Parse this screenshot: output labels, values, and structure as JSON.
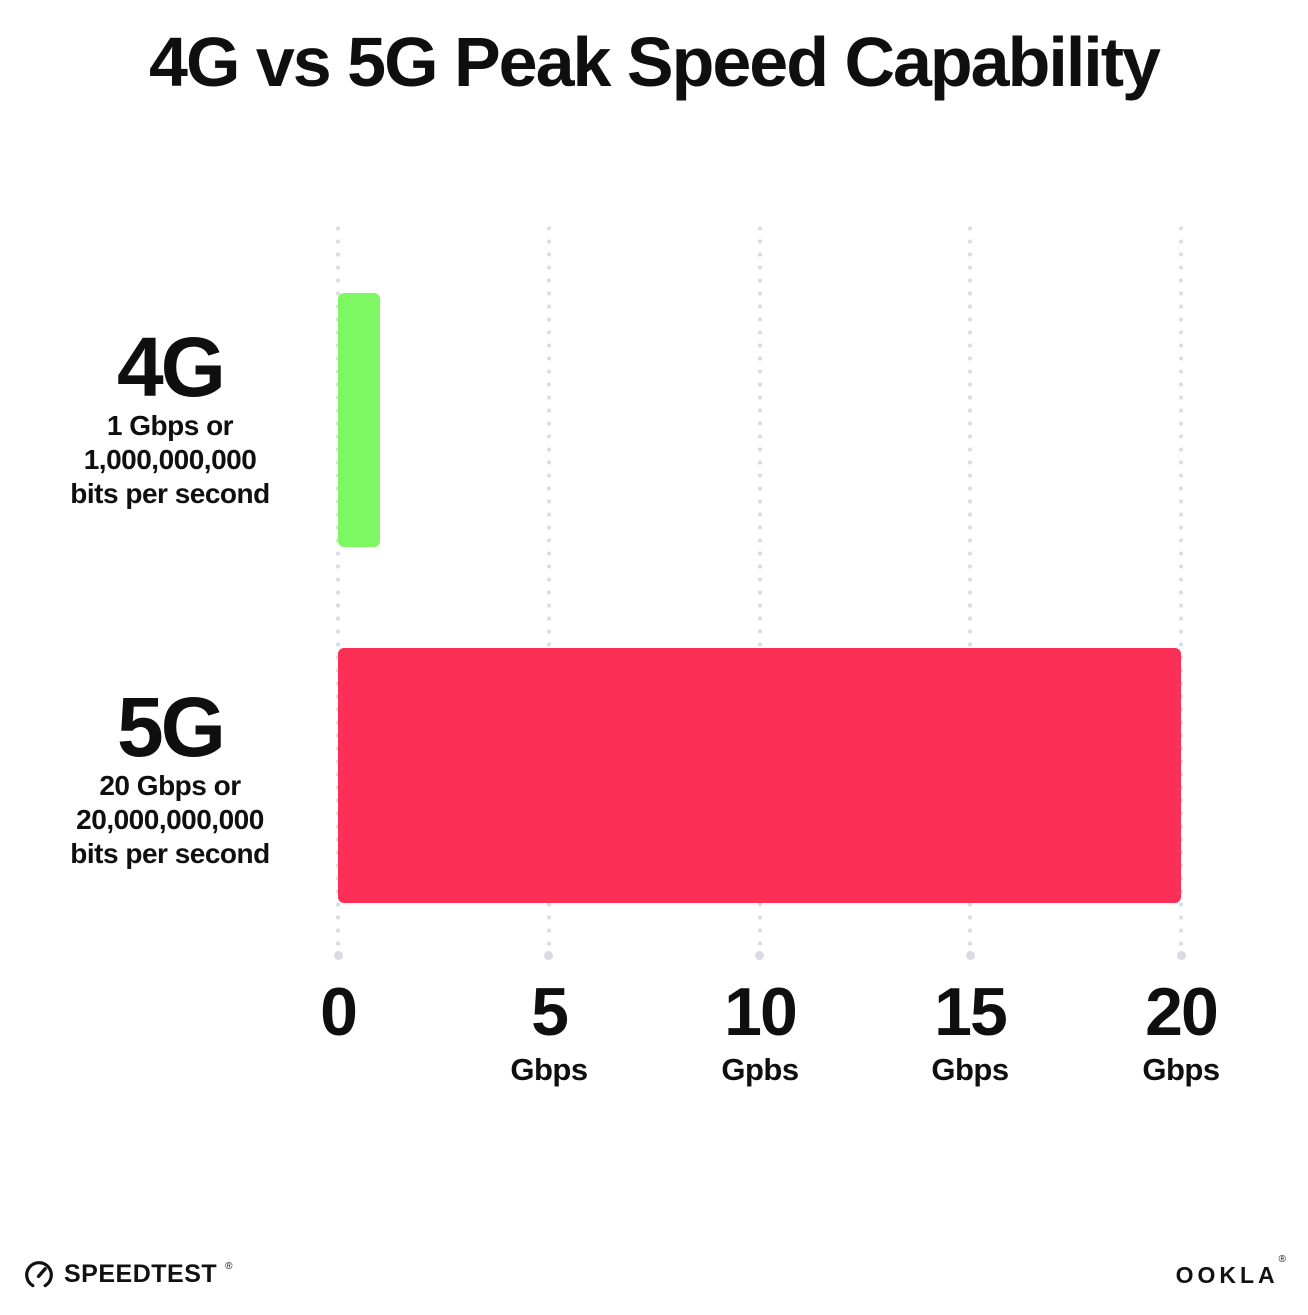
{
  "title": "4G vs 5G Peak Speed Capability",
  "rows": [
    {
      "label": "4G",
      "lines": [
        "1 Gbps or",
        "1,000,000,000",
        "bits per second"
      ]
    },
    {
      "label": "5G",
      "lines": [
        "20 Gbps or",
        "20,000,000,000",
        "bits per second"
      ]
    }
  ],
  "axis": {
    "ticks": [
      {
        "num": "0",
        "unit": ""
      },
      {
        "num": "5",
        "unit": "Gbps"
      },
      {
        "num": "10",
        "unit": "Gpbs"
      },
      {
        "num": "15",
        "unit": "Gbps"
      },
      {
        "num": "20",
        "unit": "Gbps"
      }
    ]
  },
  "footer": {
    "speedtest_label": "SPEEDTEST",
    "speedtest_mark": "®",
    "ookla_label": "OOKLA",
    "ookla_mark": "®"
  },
  "colors": {
    "bar_4g": "#7DF863",
    "bar_5g": "#FC3056",
    "grid_dot": "#DCDCE8",
    "text": "#0F0F0F"
  },
  "chart_data": {
    "type": "bar",
    "orientation": "horizontal",
    "title": "4G vs 5G Peak Speed Capability",
    "categories": [
      "4G",
      "5G"
    ],
    "values": [
      1,
      20
    ],
    "bar_colors": [
      "#7DF863",
      "#FC3056"
    ],
    "category_notes": [
      "1 Gbps or 1,000,000,000 bits per second",
      "20 Gbps or 20,000,000,000 bits per second"
    ],
    "x_unit": "Gbps",
    "xlim": [
      0,
      20
    ],
    "xticks": [
      0,
      5,
      10,
      15,
      20
    ],
    "xtick_labels": [
      "0",
      "5 Gbps",
      "10 Gpbs",
      "15 Gbps",
      "20 Gbps"
    ],
    "grid": "vertical-dotted",
    "legend": false
  }
}
